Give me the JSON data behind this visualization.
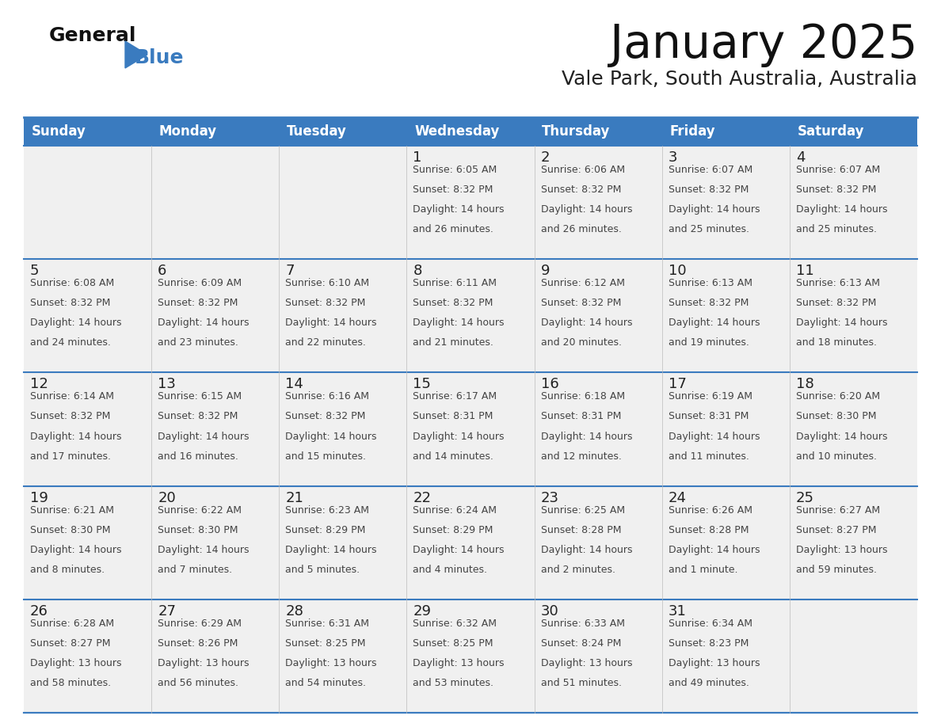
{
  "title": "January 2025",
  "subtitle": "Vale Park, South Australia, Australia",
  "days_of_week": [
    "Sunday",
    "Monday",
    "Tuesday",
    "Wednesday",
    "Thursday",
    "Friday",
    "Saturday"
  ],
  "header_bg": "#3a7bbf",
  "header_text": "#ffffff",
  "cell_bg": "#f0f0f0",
  "cell_bg_empty": "#f0f0f0",
  "grid_line_color": "#3a7bbf",
  "text_color": "#444444",
  "day_num_color": "#222222",
  "title_color": "#111111",
  "subtitle_color": "#222222",
  "calendar_data": [
    [
      {
        "day": "",
        "sunrise": "",
        "sunset": "",
        "daylight": ""
      },
      {
        "day": "",
        "sunrise": "",
        "sunset": "",
        "daylight": ""
      },
      {
        "day": "",
        "sunrise": "",
        "sunset": "",
        "daylight": ""
      },
      {
        "day": "1",
        "sunrise": "6:05 AM",
        "sunset": "8:32 PM",
        "daylight": "14 hours and 26 minutes."
      },
      {
        "day": "2",
        "sunrise": "6:06 AM",
        "sunset": "8:32 PM",
        "daylight": "14 hours and 26 minutes."
      },
      {
        "day": "3",
        "sunrise": "6:07 AM",
        "sunset": "8:32 PM",
        "daylight": "14 hours and 25 minutes."
      },
      {
        "day": "4",
        "sunrise": "6:07 AM",
        "sunset": "8:32 PM",
        "daylight": "14 hours and 25 minutes."
      }
    ],
    [
      {
        "day": "5",
        "sunrise": "6:08 AM",
        "sunset": "8:32 PM",
        "daylight": "14 hours and 24 minutes."
      },
      {
        "day": "6",
        "sunrise": "6:09 AM",
        "sunset": "8:32 PM",
        "daylight": "14 hours and 23 minutes."
      },
      {
        "day": "7",
        "sunrise": "6:10 AM",
        "sunset": "8:32 PM",
        "daylight": "14 hours and 22 minutes."
      },
      {
        "day": "8",
        "sunrise": "6:11 AM",
        "sunset": "8:32 PM",
        "daylight": "14 hours and 21 minutes."
      },
      {
        "day": "9",
        "sunrise": "6:12 AM",
        "sunset": "8:32 PM",
        "daylight": "14 hours and 20 minutes."
      },
      {
        "day": "10",
        "sunrise": "6:13 AM",
        "sunset": "8:32 PM",
        "daylight": "14 hours and 19 minutes."
      },
      {
        "day": "11",
        "sunrise": "6:13 AM",
        "sunset": "8:32 PM",
        "daylight": "14 hours and 18 minutes."
      }
    ],
    [
      {
        "day": "12",
        "sunrise": "6:14 AM",
        "sunset": "8:32 PM",
        "daylight": "14 hours and 17 minutes."
      },
      {
        "day": "13",
        "sunrise": "6:15 AM",
        "sunset": "8:32 PM",
        "daylight": "14 hours and 16 minutes."
      },
      {
        "day": "14",
        "sunrise": "6:16 AM",
        "sunset": "8:32 PM",
        "daylight": "14 hours and 15 minutes."
      },
      {
        "day": "15",
        "sunrise": "6:17 AM",
        "sunset": "8:31 PM",
        "daylight": "14 hours and 14 minutes."
      },
      {
        "day": "16",
        "sunrise": "6:18 AM",
        "sunset": "8:31 PM",
        "daylight": "14 hours and 12 minutes."
      },
      {
        "day": "17",
        "sunrise": "6:19 AM",
        "sunset": "8:31 PM",
        "daylight": "14 hours and 11 minutes."
      },
      {
        "day": "18",
        "sunrise": "6:20 AM",
        "sunset": "8:30 PM",
        "daylight": "14 hours and 10 minutes."
      }
    ],
    [
      {
        "day": "19",
        "sunrise": "6:21 AM",
        "sunset": "8:30 PM",
        "daylight": "14 hours and 8 minutes."
      },
      {
        "day": "20",
        "sunrise": "6:22 AM",
        "sunset": "8:30 PM",
        "daylight": "14 hours and 7 minutes."
      },
      {
        "day": "21",
        "sunrise": "6:23 AM",
        "sunset": "8:29 PM",
        "daylight": "14 hours and 5 minutes."
      },
      {
        "day": "22",
        "sunrise": "6:24 AM",
        "sunset": "8:29 PM",
        "daylight": "14 hours and 4 minutes."
      },
      {
        "day": "23",
        "sunrise": "6:25 AM",
        "sunset": "8:28 PM",
        "daylight": "14 hours and 2 minutes."
      },
      {
        "day": "24",
        "sunrise": "6:26 AM",
        "sunset": "8:28 PM",
        "daylight": "14 hours and 1 minute."
      },
      {
        "day": "25",
        "sunrise": "6:27 AM",
        "sunset": "8:27 PM",
        "daylight": "13 hours and 59 minutes."
      }
    ],
    [
      {
        "day": "26",
        "sunrise": "6:28 AM",
        "sunset": "8:27 PM",
        "daylight": "13 hours and 58 minutes."
      },
      {
        "day": "27",
        "sunrise": "6:29 AM",
        "sunset": "8:26 PM",
        "daylight": "13 hours and 56 minutes."
      },
      {
        "day": "28",
        "sunrise": "6:31 AM",
        "sunset": "8:25 PM",
        "daylight": "13 hours and 54 minutes."
      },
      {
        "day": "29",
        "sunrise": "6:32 AM",
        "sunset": "8:25 PM",
        "daylight": "13 hours and 53 minutes."
      },
      {
        "day": "30",
        "sunrise": "6:33 AM",
        "sunset": "8:24 PM",
        "daylight": "13 hours and 51 minutes."
      },
      {
        "day": "31",
        "sunrise": "6:34 AM",
        "sunset": "8:23 PM",
        "daylight": "13 hours and 49 minutes."
      },
      {
        "day": "",
        "sunrise": "",
        "sunset": "",
        "daylight": ""
      }
    ]
  ]
}
